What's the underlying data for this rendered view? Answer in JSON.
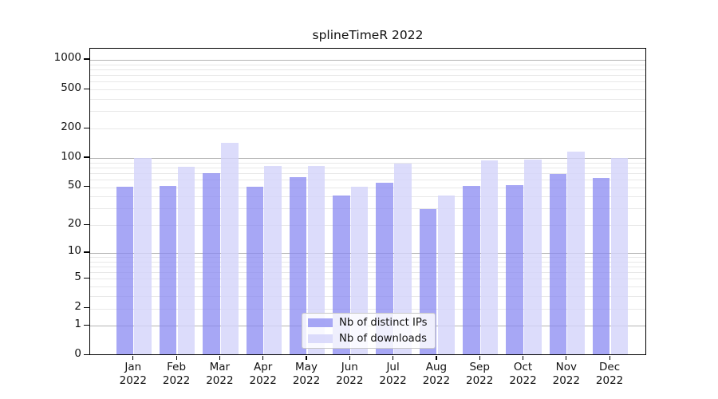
{
  "chart_data": {
    "type": "bar",
    "title": "splineTimeR 2022",
    "categories": [
      "Jan",
      "Feb",
      "Mar",
      "Apr",
      "May",
      "Jun",
      "Jul",
      "Aug",
      "Sep",
      "Oct",
      "Nov",
      "Dec"
    ],
    "year": "2022",
    "series": [
      {
        "name": "Nb of distinct IPs",
        "color": "rgba(138,138,242,0.75)",
        "values": [
          49,
          50,
          68,
          49,
          62,
          40,
          54,
          29,
          50,
          51,
          67,
          61
        ]
      },
      {
        "name": "Nb of downloads",
        "color": "rgba(211,211,250,0.8)",
        "values": [
          97,
          79,
          140,
          80,
          81,
          49,
          86,
          40,
          92,
          94,
          112,
          97
        ]
      }
    ],
    "xlabel": "",
    "ylabel": "",
    "yscale": "log10(1+x)",
    "ylim": [
      0,
      1300
    ],
    "yticks": [
      0,
      1,
      2,
      5,
      10,
      20,
      50,
      100,
      200,
      500,
      1000
    ],
    "grid": {
      "show": true,
      "orientation": "horizontal",
      "minor": "2-9 per decade",
      "major": "powers of 10",
      "major_color": "#b4b4b4",
      "minor_color": "#e8e8e8"
    },
    "legend": {
      "position": "lower center"
    }
  },
  "colors": {
    "background": "#ffffff",
    "axis": "#000000",
    "tick_text": "#111111",
    "legend_border": "#c8c8c8",
    "legend_background": "rgba(255,255,255,0.82)"
  }
}
